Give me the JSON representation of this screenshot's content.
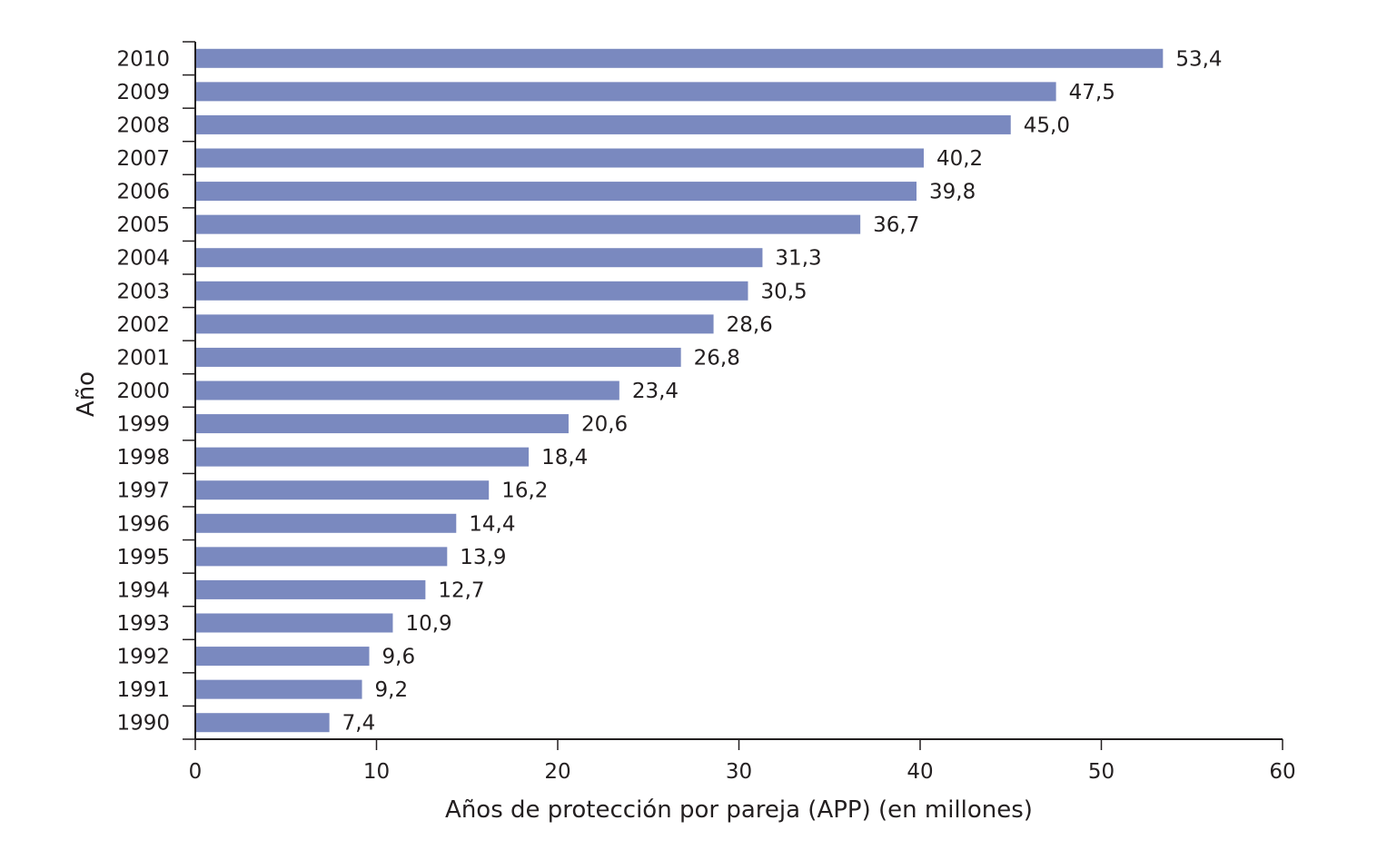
{
  "chart_data": {
    "type": "bar",
    "orientation": "horizontal",
    "categories": [
      "2010",
      "2009",
      "2008",
      "2007",
      "2006",
      "2005",
      "2004",
      "2003",
      "2002",
      "2001",
      "2000",
      "1999",
      "1998",
      "1997",
      "1996",
      "1995",
      "1994",
      "1993",
      "1992",
      "1991",
      "1990"
    ],
    "values": [
      53.4,
      47.5,
      45.0,
      40.2,
      39.8,
      36.7,
      31.3,
      30.5,
      28.6,
      26.8,
      23.4,
      20.6,
      18.4,
      16.2,
      14.4,
      13.9,
      12.7,
      10.9,
      9.6,
      9.2,
      7.4
    ],
    "value_labels": [
      "53,4",
      "47,5",
      "45,0",
      "40,2",
      "39,8",
      "36,7",
      "31,3",
      "30,5",
      "28,6",
      "26,8",
      "23,4",
      "20,6",
      "18,4",
      "16,2",
      "14,4",
      "13,9",
      "12,7",
      "10,9",
      "9,6",
      "9,2",
      "7,4"
    ],
    "xlabel": "Años de protección por pareja (APP) (en millones)",
    "ylabel": "Año",
    "xlim": [
      0,
      60
    ],
    "xticks": [
      0,
      10,
      20,
      30,
      40,
      50,
      60
    ],
    "grid": false,
    "bar_color": "#7a89bf",
    "axis_color": "#231f20"
  }
}
